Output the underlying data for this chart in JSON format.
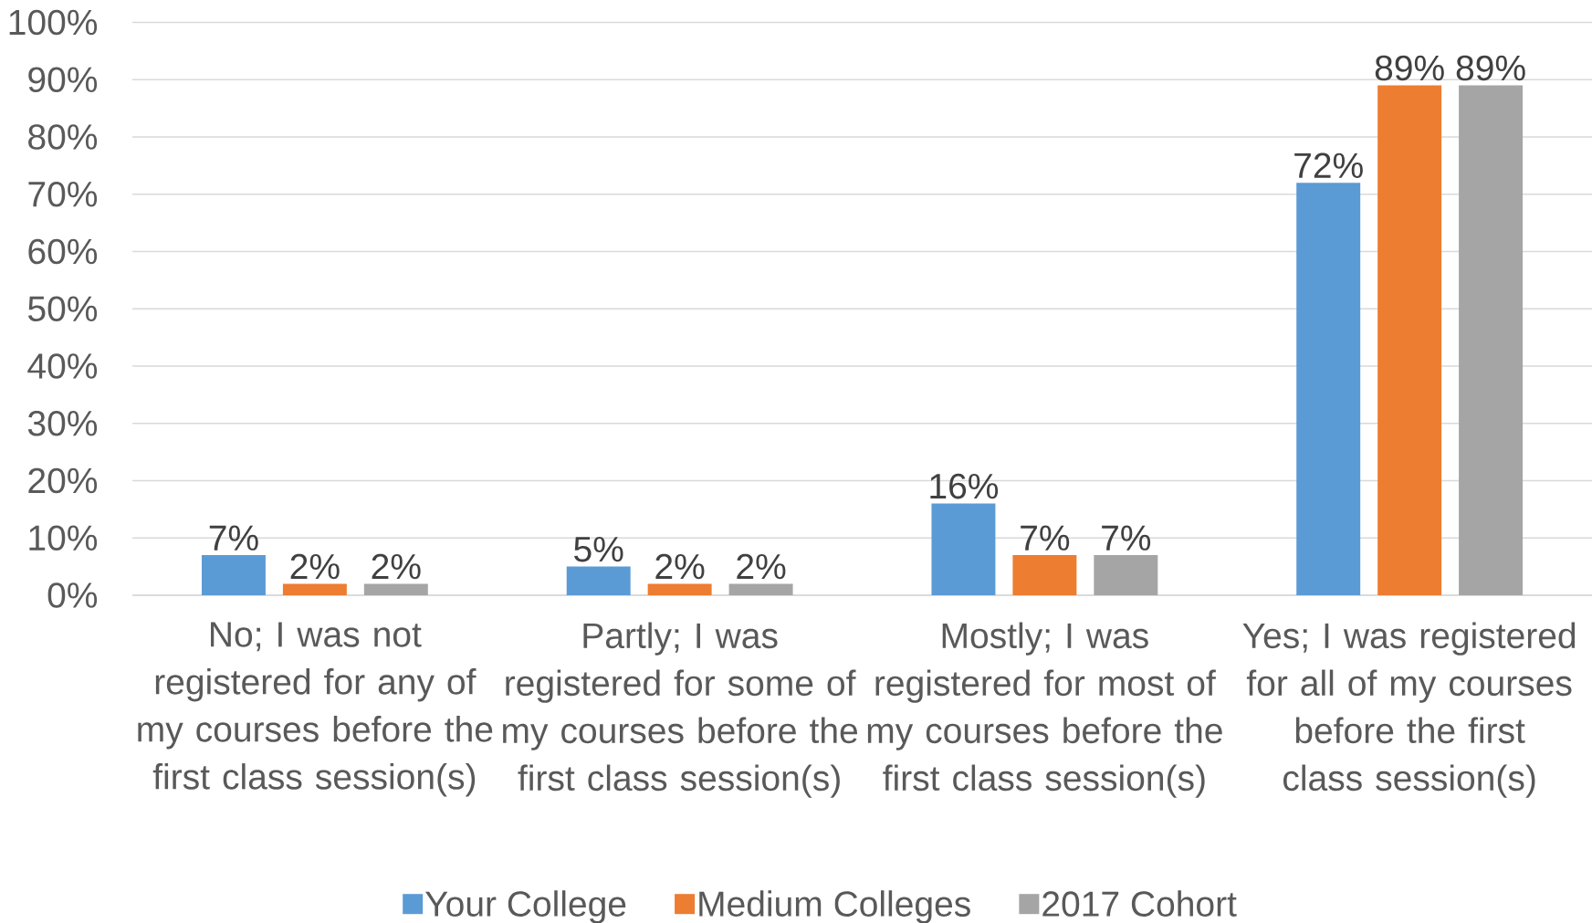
{
  "chart_data": {
    "type": "bar",
    "categories": [
      "No; I was not registered for any of my courses before the first class session(s)",
      "Partly; I was registered for some of my courses before the first class session(s)",
      "Mostly; I was registered for most of my courses before the first class session(s)",
      "Yes; I was registered for all of my courses before the first class session(s)"
    ],
    "series": [
      {
        "name": "Your College",
        "color": "#5b9bd5",
        "values": [
          7,
          5,
          16,
          72
        ],
        "value_labels": [
          "7%",
          "5%",
          "16%",
          "72%"
        ]
      },
      {
        "name": "Medium Colleges",
        "color": "#ed7d31",
        "values": [
          2,
          2,
          7,
          89
        ],
        "value_labels": [
          "2%",
          "2%",
          "7%",
          "89%"
        ]
      },
      {
        "name": "2017 Cohort",
        "color": "#a5a5a5",
        "values": [
          2,
          2,
          7,
          89
        ],
        "value_labels": [
          "2%",
          "2%",
          "7%",
          "89%"
        ]
      }
    ],
    "ylim": [
      0,
      100
    ],
    "yticks": [
      {
        "value": 0,
        "label": "0%"
      },
      {
        "value": 10,
        "label": "10%"
      },
      {
        "value": 20,
        "label": "20%"
      },
      {
        "value": 30,
        "label": "30%"
      },
      {
        "value": 40,
        "label": "40%"
      },
      {
        "value": 50,
        "label": "50%"
      },
      {
        "value": 60,
        "label": "60%"
      },
      {
        "value": 70,
        "label": "70%"
      },
      {
        "value": 80,
        "label": "80%"
      },
      {
        "value": 90,
        "label": "90%"
      },
      {
        "value": 100,
        "label": "100%"
      }
    ],
    "grid": "y",
    "legend": "bottom"
  }
}
